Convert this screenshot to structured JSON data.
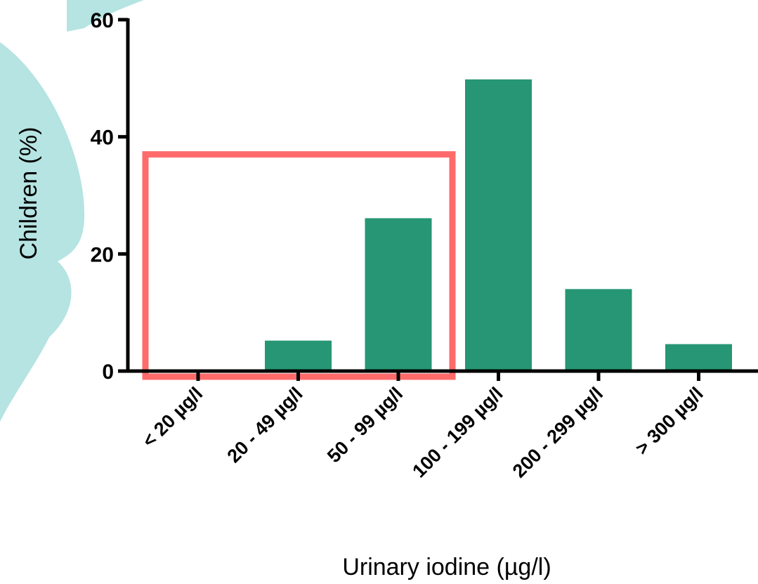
{
  "chart_data": {
    "type": "bar",
    "categories": [
      "< 20 µg/l",
      "20 - 49 µg/l",
      "50 - 99 µg/l",
      "100 - 199 µg/l",
      "200 - 299 µg/l",
      "> 300 µg/l"
    ],
    "values": [
      0,
      5.2,
      26.1,
      49.8,
      14.0,
      4.6
    ],
    "xlabel": "Urinary iodine (µg/l)",
    "ylabel": "Children (%)",
    "ylim": [
      0,
      60
    ],
    "yticks": [
      0,
      20,
      40,
      60
    ],
    "grid": false,
    "colors": {
      "bar": "#269674",
      "highlight": "#ff6b6b",
      "watermark": "#b5e4e2"
    },
    "highlight": {
      "categories": [
        "< 20 µg/l",
        "20 - 49 µg/l",
        "50 - 99 µg/l"
      ],
      "top_value": 37
    }
  }
}
